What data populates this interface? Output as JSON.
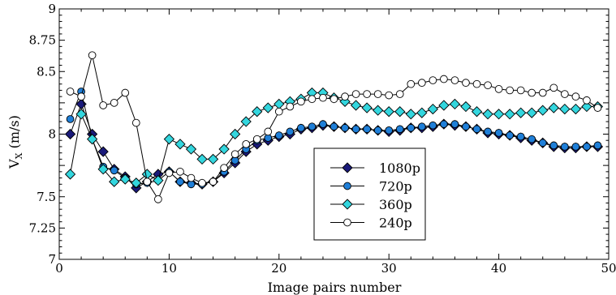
{
  "chart_data": {
    "type": "line",
    "title": "",
    "xlabel": "Image pairs number",
    "ylabel_main": "V",
    "ylabel_sub": "X",
    "ylabel_unit": " (m/s)",
    "xlim": [
      0,
      50
    ],
    "ylim": [
      7,
      9
    ],
    "x_ticks": [
      0,
      10,
      20,
      30,
      40,
      50
    ],
    "y_ticks": [
      7,
      7.25,
      7.5,
      7.75,
      8,
      8.25,
      8.5,
      8.75,
      9
    ],
    "y_tick_labels": [
      "7",
      "7.25",
      "7.5",
      "",
      "8",
      "",
      "8.5",
      "8.75",
      "9"
    ],
    "grid": false,
    "legend_position": "center-bottom",
    "x": [
      1,
      2,
      3,
      4,
      5,
      6,
      7,
      8,
      9,
      10,
      11,
      12,
      13,
      14,
      15,
      16,
      17,
      18,
      19,
      20,
      21,
      22,
      23,
      24,
      25,
      26,
      27,
      28,
      29,
      30,
      31,
      32,
      33,
      34,
      35,
      36,
      37,
      38,
      39,
      40,
      41,
      42,
      43,
      44,
      45,
      46,
      47,
      48,
      49
    ],
    "series": [
      {
        "name": "1080p",
        "marker": "diamond",
        "color": "#1a1a7a",
        "values": [
          8.0,
          8.24,
          8.0,
          7.86,
          7.72,
          7.66,
          7.57,
          7.62,
          7.68,
          7.7,
          7.62,
          7.61,
          7.6,
          7.62,
          7.69,
          7.77,
          7.86,
          7.92,
          7.95,
          7.98,
          8.0,
          8.04,
          8.05,
          8.07,
          8.06,
          8.05,
          8.04,
          8.04,
          8.03,
          8.02,
          8.03,
          8.05,
          8.05,
          8.06,
          8.08,
          8.07,
          8.06,
          8.04,
          8.01,
          8.0,
          7.99,
          7.97,
          7.95,
          7.93,
          7.9,
          7.89,
          7.89,
          7.9,
          7.9
        ]
      },
      {
        "name": "720p",
        "marker": "circle",
        "color": "#1f7fd8",
        "values": [
          8.12,
          8.34,
          7.96,
          7.74,
          7.71,
          7.65,
          7.6,
          7.61,
          7.63,
          7.7,
          7.62,
          7.6,
          7.6,
          7.62,
          7.7,
          7.79,
          7.88,
          7.95,
          7.97,
          7.99,
          8.02,
          8.05,
          8.06,
          8.08,
          8.06,
          8.05,
          8.04,
          8.04,
          8.03,
          8.03,
          8.04,
          8.05,
          8.06,
          8.07,
          8.08,
          8.08,
          8.06,
          8.04,
          8.02,
          8.01,
          7.99,
          7.98,
          7.96,
          7.93,
          7.91,
          7.9,
          7.9,
          7.9,
          7.91
        ]
      },
      {
        "name": "360p",
        "marker": "diamond",
        "color": "#33d6de",
        "values": [
          7.68,
          8.16,
          7.96,
          7.72,
          7.62,
          7.64,
          7.61,
          7.68,
          7.63,
          7.96,
          7.92,
          7.88,
          7.8,
          7.8,
          7.88,
          8.0,
          8.1,
          8.18,
          8.21,
          8.24,
          8.26,
          8.28,
          8.33,
          8.33,
          8.29,
          8.26,
          8.23,
          8.21,
          8.19,
          8.18,
          8.18,
          8.16,
          8.17,
          8.2,
          8.23,
          8.24,
          8.22,
          8.18,
          8.16,
          8.16,
          8.16,
          8.17,
          8.17,
          8.19,
          8.21,
          8.2,
          8.2,
          8.22,
          8.22
        ]
      },
      {
        "name": "240p",
        "marker": "circle",
        "color": "#ffffff",
        "values": [
          8.34,
          8.3,
          8.63,
          8.23,
          8.25,
          8.33,
          8.09,
          7.62,
          7.48,
          7.69,
          7.7,
          7.65,
          7.61,
          7.62,
          7.73,
          7.84,
          7.92,
          7.96,
          8.02,
          8.18,
          8.22,
          8.26,
          8.28,
          8.29,
          8.28,
          8.3,
          8.32,
          8.32,
          8.32,
          8.31,
          8.32,
          8.4,
          8.41,
          8.43,
          8.44,
          8.43,
          8.41,
          8.4,
          8.39,
          8.36,
          8.35,
          8.35,
          8.33,
          8.33,
          8.37,
          8.32,
          8.3,
          8.27,
          8.21
        ]
      }
    ]
  }
}
